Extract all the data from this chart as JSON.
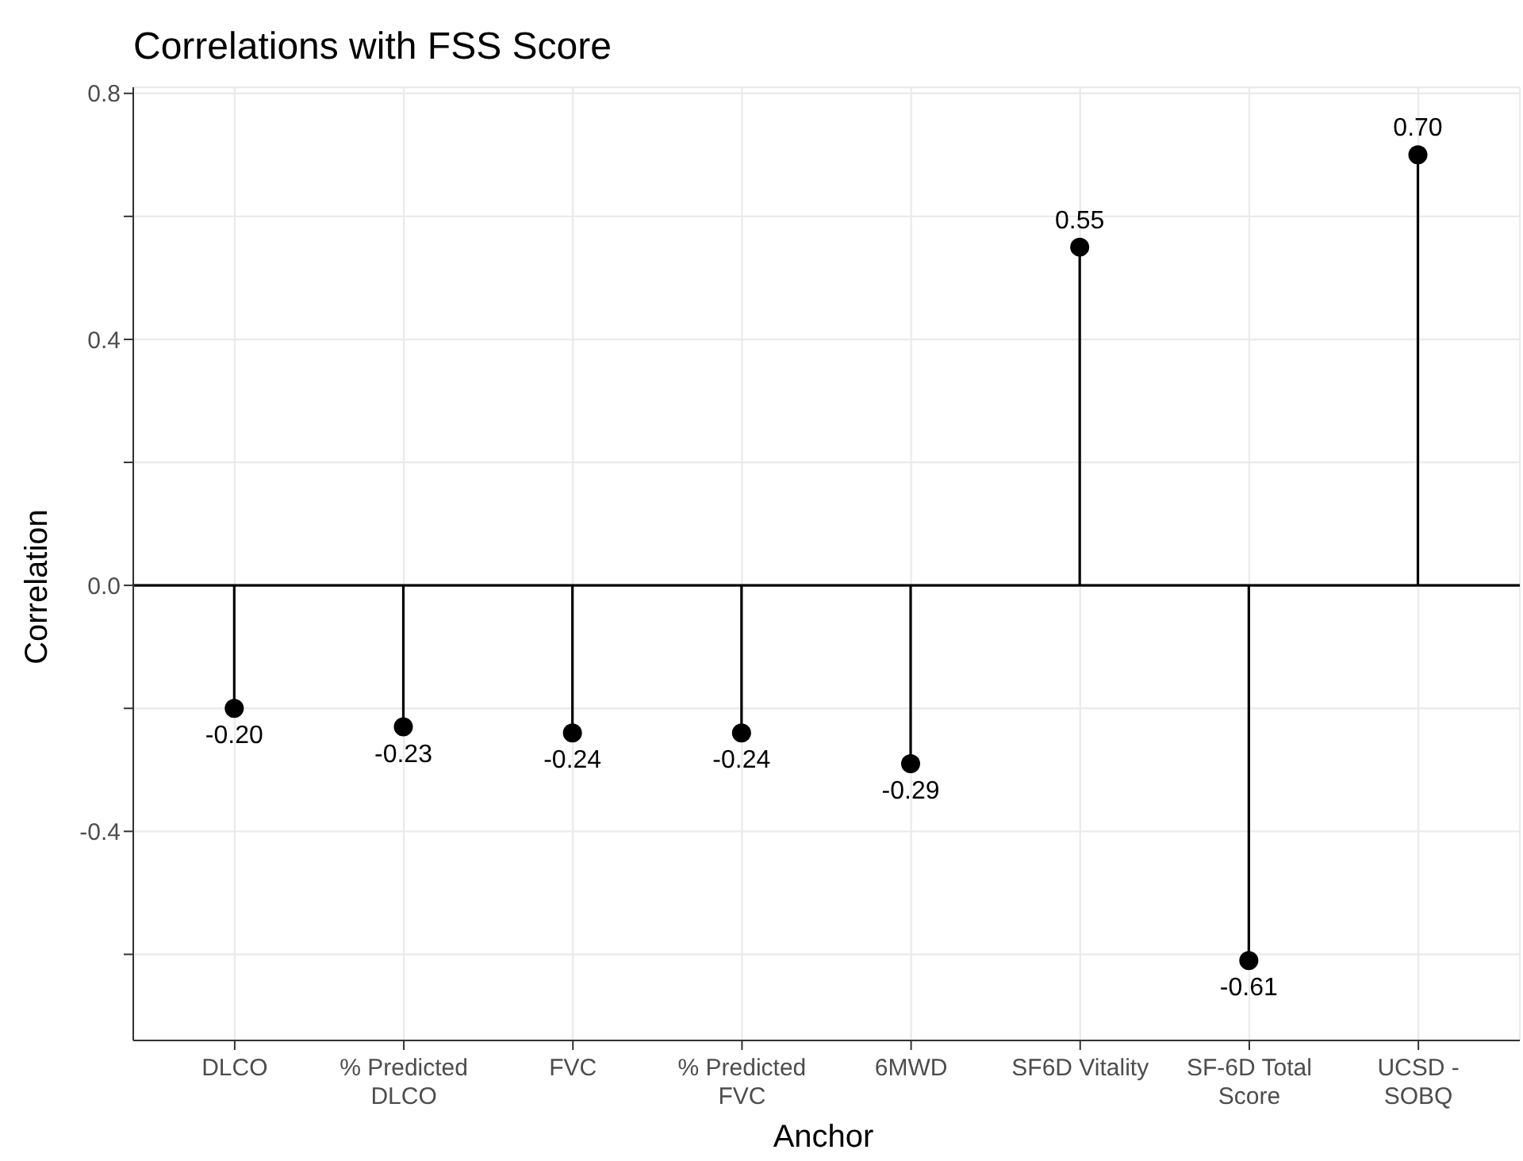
{
  "chart_data": {
    "type": "lollipop",
    "title": "Correlations with FSS Score",
    "xlabel": "Anchor",
    "ylabel": "Correlation",
    "categories": [
      "DLCO",
      "% Predicted\nDLCO",
      "FVC",
      "% Predicted\nFVC",
      "6MWD",
      "SF6D Vitality",
      "SF-6D Total\nScore",
      "UCSD -\nSOBQ"
    ],
    "values": [
      -0.2,
      -0.23,
      -0.24,
      -0.24,
      -0.29,
      0.55,
      -0.61,
      0.7
    ],
    "value_labels": [
      "-0.20",
      "-0.23",
      "-0.24",
      "-0.24",
      "-0.29",
      "0.55",
      "-0.61",
      "0.70"
    ],
    "color": "#000000",
    "ylim": [
      -0.74,
      0.81
    ],
    "yticks": [
      {
        "value": -0.6,
        "label": null
      },
      -0.4,
      {
        "value": -0.2,
        "label": null
      },
      {
        "value": 0,
        "label": "0.0"
      },
      {
        "value": 0.2,
        "label": null
      },
      0.4,
      {
        "value": 0.6,
        "label": null
      },
      0.8
    ],
    "ref_lines": [
      {
        "axis": "y",
        "value": 0,
        "color": "#000000"
      }
    ],
    "grid": true,
    "marker": "circle"
  }
}
